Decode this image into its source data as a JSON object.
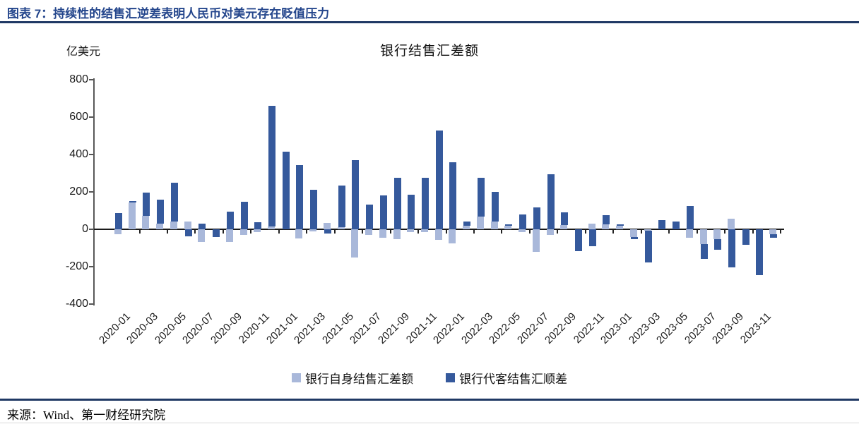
{
  "header": {
    "title": "图表 7：持续性的结售汇逆差表明人民币对美元存在贬值压力"
  },
  "chart": {
    "title": "银行结售汇差额",
    "unit_label": "亿美元"
  },
  "legend": {
    "items": [
      {
        "label": "银行自身结售汇差额",
        "color": "#a9b8da"
      },
      {
        "label": "银行代客结售汇顺差",
        "color": "#35599c"
      }
    ]
  },
  "source": {
    "text": "来源：Wind、第一财经研究院"
  },
  "colors": {
    "accent_navy": "#1f3864",
    "title_blue": "#24468c",
    "bar_light": "#a9b8da",
    "bar_dark": "#35599c"
  },
  "chart_data": {
    "type": "bar",
    "stacked": true,
    "title": "银行结售汇差额",
    "ylabel": "亿美元",
    "ylim": [
      -400,
      800
    ],
    "y_ticks": [
      800,
      600,
      400,
      200,
      0,
      -200,
      -400
    ],
    "grid": false,
    "legend_position": "bottom",
    "categories": [
      "2020-01",
      "2020-02",
      "2020-03",
      "2020-04",
      "2020-05",
      "2020-06",
      "2020-07",
      "2020-08",
      "2020-09",
      "2020-10",
      "2020-11",
      "2020-12",
      "2021-01",
      "2021-02",
      "2021-03",
      "2021-04",
      "2021-05",
      "2021-06",
      "2021-07",
      "2021-08",
      "2021-09",
      "2021-10",
      "2021-11",
      "2021-12",
      "2022-01",
      "2022-02",
      "2022-03",
      "2022-04",
      "2022-05",
      "2022-06",
      "2022-07",
      "2022-08",
      "2022-09",
      "2022-10",
      "2022-11",
      "2022-12",
      "2023-01",
      "2023-02",
      "2023-03",
      "2023-04",
      "2023-05",
      "2023-06",
      "2023-07",
      "2023-08",
      "2023-09",
      "2023-10",
      "2023-11",
      "2023-12"
    ],
    "x_tick_labels": [
      "2020-01",
      "2020-03",
      "2020-05",
      "2020-07",
      "2020-09",
      "2020-11",
      "2021-01",
      "2021-03",
      "2021-05",
      "2021-07",
      "2021-09",
      "2021-11",
      "2022-01",
      "2022-03",
      "2022-05",
      "2022-07",
      "2022-09",
      "2022-11",
      "2023-01",
      "2023-03",
      "2023-05",
      "2023-07",
      "2023-09",
      "2023-11"
    ],
    "series": [
      {
        "name": "银行自身结售汇差额",
        "color": "#a9b8da",
        "values": [
          -25,
          145,
          70,
          31,
          42,
          42,
          -68,
          0,
          -68,
          -29,
          -15,
          15,
          0,
          -50,
          -12,
          33,
          12,
          -152,
          -30,
          -45,
          -54,
          -15,
          -15,
          -55,
          -77,
          18,
          69,
          42,
          18,
          -17,
          -122,
          -32,
          24,
          0,
          32,
          27,
          18,
          -40,
          -8,
          0,
          0,
          -46,
          -80,
          -53,
          57,
          0,
          0,
          -25
        ]
      },
      {
        "name": "银行代客结售汇顺差",
        "color": "#35599c",
        "values": [
          88,
          5,
          125,
          126,
          208,
          -36,
          31,
          -40,
          94,
          149,
          36,
          645,
          417,
          344,
          211,
          -21,
          223,
          372,
          131,
          183,
          275,
          187,
          276,
          530,
          360,
          24,
          206,
          157,
          10,
          80,
          119,
          295,
          68,
          -118,
          -92,
          47,
          10,
          -14,
          -168,
          51,
          42,
          123,
          -77,
          -57,
          -203,
          -84,
          -245,
          -20
        ]
      }
    ]
  }
}
